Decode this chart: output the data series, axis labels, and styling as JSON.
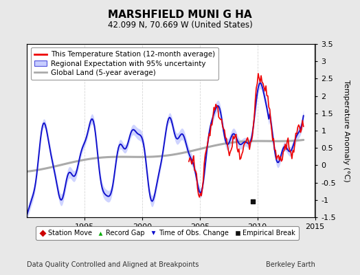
{
  "title": "MARSHFIELD MUNI G HA",
  "subtitle": "42.099 N, 70.669 W (United States)",
  "ylabel": "Temperature Anomaly (°C)",
  "footer_left": "Data Quality Controlled and Aligned at Breakpoints",
  "footer_right": "Berkeley Earth",
  "xlim": [
    1990,
    2015
  ],
  "ylim": [
    -1.5,
    3.5
  ],
  "yticks": [
    -1.5,
    -1.0,
    -0.5,
    0,
    0.5,
    1.0,
    1.5,
    2.0,
    2.5,
    3.0,
    3.5
  ],
  "xticks": [
    1995,
    2000,
    2005,
    2010,
    2015
  ],
  "background_color": "#e8e8e8",
  "plot_bg_color": "#ffffff",
  "legend_labels": [
    "This Temperature Station (12-month average)",
    "Regional Expectation with 95% uncertainty",
    "Global Land (5-year average)"
  ],
  "empirical_break_year": 2009.6,
  "empirical_break_value": -1.05,
  "title_fontsize": 11,
  "subtitle_fontsize": 8.5,
  "axis_fontsize": 8,
  "legend_fontsize": 7.5
}
